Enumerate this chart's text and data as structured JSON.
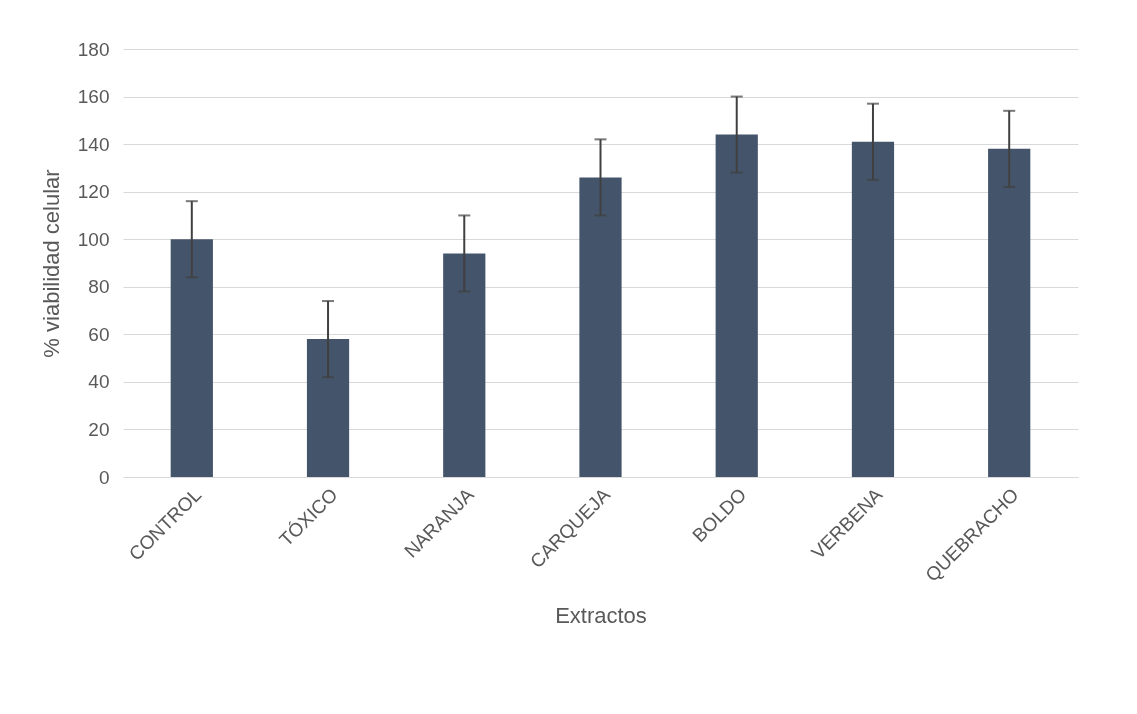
{
  "chart_data": {
    "type": "bar",
    "xlabel": "Extractos",
    "ylabel": "% viabilidad celular",
    "categories": [
      "CONTROL",
      "TÓXICO",
      "NARANJA",
      "CARQUEJA",
      "BOLDO",
      "VERBENA",
      "QUEBRACHO"
    ],
    "values": [
      100,
      58,
      94,
      126,
      144,
      141,
      138
    ],
    "errors": [
      16,
      16,
      16,
      16,
      16,
      16,
      16
    ],
    "color": "#44546a",
    "ylim": [
      0,
      180
    ],
    "yticks": [
      0,
      20,
      40,
      60,
      80,
      100,
      120,
      140,
      160,
      180
    ],
    "grid": "y"
  }
}
